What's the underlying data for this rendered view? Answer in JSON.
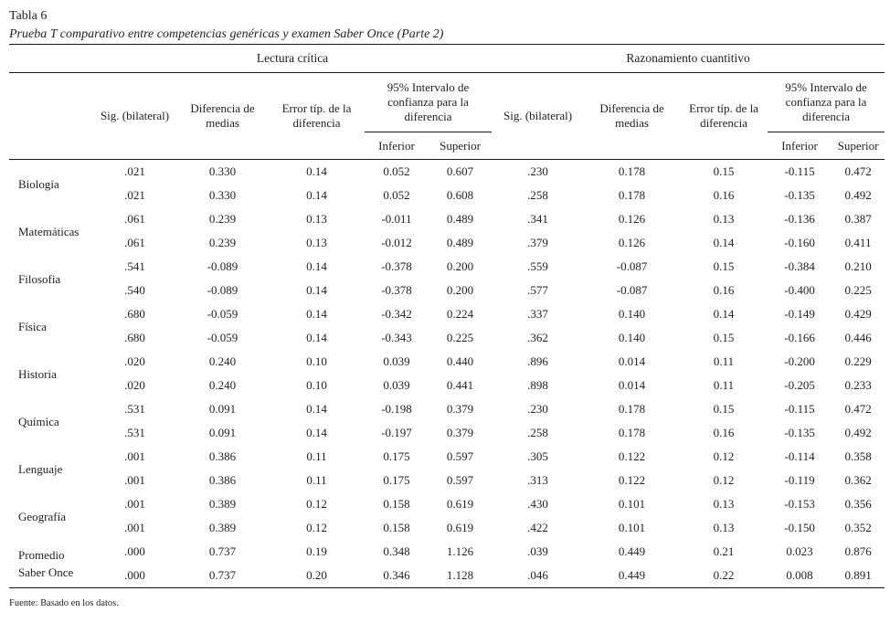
{
  "page": {
    "title": "Tabla 6",
    "subtitle": "Prueba T comparativo entre competencias genéricas y examen Saber Once (Parte 2)",
    "footer": "Fuente: Basado en los datos."
  },
  "table": {
    "groups": [
      {
        "label": "Lectura crítica"
      },
      {
        "label": "Razonamiento cuantitivo"
      }
    ],
    "columns": {
      "sig": "Sig. (bilateral)",
      "dif": "Diferencia de medias",
      "err": "Error típ. de la diferencia",
      "ci": "95% Intervalo de confianza para la diferencia",
      "inferior": "Inferior",
      "superior": "Superior"
    },
    "rows": [
      {
        "label": "Biología",
        "lines": [
          [
            ".021",
            "0.330",
            "0.14",
            "0.052",
            "0.607",
            ".230",
            "0.178",
            "0.15",
            "-0.115",
            "0.472"
          ],
          [
            ".021",
            "0.330",
            "0.14",
            "0.052",
            "0.608",
            ".258",
            "0.178",
            "0.16",
            "-0.135",
            "0.492"
          ]
        ]
      },
      {
        "label": "Matemáticas",
        "lines": [
          [
            ".061",
            "0.239",
            "0.13",
            "-0.011",
            "0.489",
            ".341",
            "0.126",
            "0.13",
            "-0.136",
            "0.387"
          ],
          [
            ".061",
            "0.239",
            "0.13",
            "-0.012",
            "0.489",
            ".379",
            "0.126",
            "0.14",
            "-0.160",
            "0.411"
          ]
        ]
      },
      {
        "label": "Filosofia",
        "lines": [
          [
            ".541",
            "-0.089",
            "0.14",
            "-0.378",
            "0.200",
            ".559",
            "-0.087",
            "0.15",
            "-0.384",
            "0.210"
          ],
          [
            ".540",
            "-0.089",
            "0.14",
            "-0.378",
            "0.200",
            ".577",
            "-0.087",
            "0.16",
            "-0.400",
            "0.225"
          ]
        ]
      },
      {
        "label": "Física",
        "lines": [
          [
            ".680",
            "-0.059",
            "0.14",
            "-0.342",
            "0.224",
            ".337",
            "0.140",
            "0.14",
            "-0.149",
            "0.429"
          ],
          [
            ".680",
            "-0.059",
            "0.14",
            "-0.343",
            "0.225",
            ".362",
            "0.140",
            "0.15",
            "-0.166",
            "0.446"
          ]
        ]
      },
      {
        "label": "Historia",
        "lines": [
          [
            ".020",
            "0.240",
            "0.10",
            "0.039",
            "0.440",
            ".896",
            "0.014",
            "0.11",
            "-0.200",
            "0.229"
          ],
          [
            ".020",
            "0.240",
            "0.10",
            "0.039",
            "0.441",
            ".898",
            "0.014",
            "0.11",
            "-0.205",
            "0.233"
          ]
        ]
      },
      {
        "label": "Química",
        "lines": [
          [
            ".531",
            "0.091",
            "0.14",
            "-0.198",
            "0.379",
            ".230",
            "0.178",
            "0.15",
            "-0.115",
            "0.472"
          ],
          [
            ".531",
            "0.091",
            "0.14",
            "-0.197",
            "0.379",
            ".258",
            "0.178",
            "0.16",
            "-0.135",
            "0.492"
          ]
        ]
      },
      {
        "label": "Lenguaje",
        "lines": [
          [
            ".001",
            "0.386",
            "0.11",
            "0.175",
            "0.597",
            ".305",
            "0.122",
            "0.12",
            "-0.114",
            "0.358"
          ],
          [
            ".001",
            "0.386",
            "0.11",
            "0.175",
            "0.597",
            ".313",
            "0.122",
            "0.12",
            "-0.119",
            "0.362"
          ]
        ]
      },
      {
        "label": "Geografía",
        "lines": [
          [
            ".001",
            "0.389",
            "0.12",
            "0.158",
            "0.619",
            ".430",
            "0.101",
            "0.13",
            "-0.153",
            "0.356"
          ],
          [
            ".001",
            "0.389",
            "0.12",
            "0.158",
            "0.619",
            ".422",
            "0.101",
            "0.13",
            "-0.150",
            "0.352"
          ]
        ]
      },
      {
        "label": "Promedio Saber Once",
        "lines": [
          [
            ".000",
            "0.737",
            "0.19",
            "0.348",
            "1.126",
            ".039",
            "0.449",
            "0.21",
            "0.023",
            "0.876"
          ],
          [
            ".000",
            "0.737",
            "0.20",
            "0.346",
            "1.128",
            ".046",
            "0.449",
            "0.22",
            "0.008",
            "0.891"
          ]
        ]
      }
    ]
  }
}
